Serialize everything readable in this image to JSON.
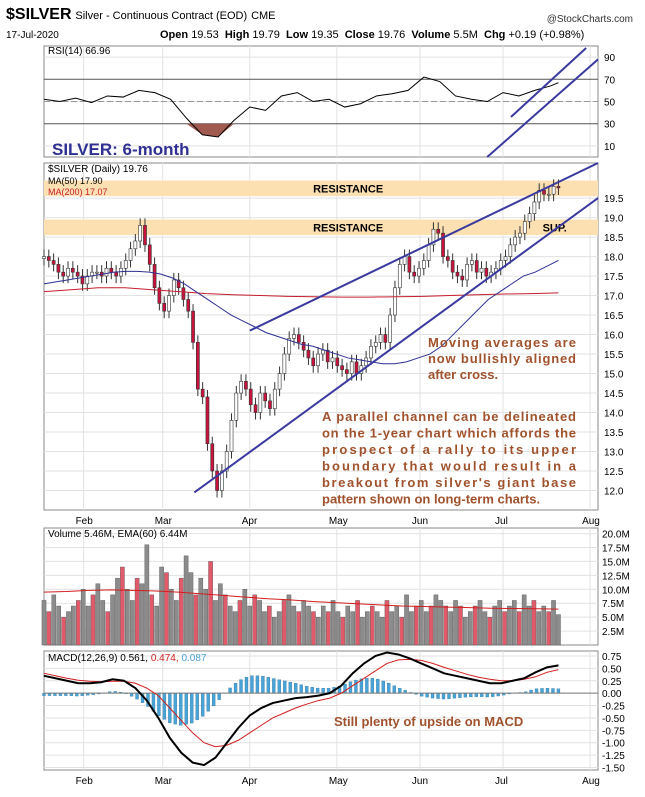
{
  "header": {
    "symbol": "$SILVER",
    "name": "Silver - Continuous Contract (EOD)",
    "exchange": "CME",
    "date": "17-Jul-2020",
    "open_label": "Open",
    "open": "19.53",
    "high_label": "High",
    "high": "19.79",
    "low_label": "Low",
    "low": "19.35",
    "close_label": "Close",
    "close": "19.76",
    "volume_label": "Volume",
    "volume": "5.5M",
    "chg_label": "Chg",
    "chg": "+0.19 (+0.98%)",
    "brand": "@StockCharts.com"
  },
  "colors": {
    "up": "#8c8c8c",
    "down": "#c8143c",
    "ma50": "#2e3192",
    "ma200": "#c81e2d",
    "channel": "#3a3aa0",
    "band": "#fde0b2",
    "annotation": "#a0522d",
    "macd_line": "#000000",
    "signal_line": "#d21e1e",
    "histogram": "#4aa3d6",
    "title_blue": "#2e3192"
  },
  "chart_data": [
    {
      "type": "line",
      "panel": "rsi",
      "legend": "RSI(14) 66.96",
      "ylim": [
        0,
        100
      ],
      "ticks": [
        90,
        70,
        50,
        30,
        10
      ],
      "x": [
        0,
        4,
        8,
        12,
        16,
        20,
        24,
        28,
        32,
        36,
        40,
        44,
        48,
        52,
        56,
        60,
        64,
        68,
        72,
        76,
        80,
        84,
        88,
        92,
        96,
        100,
        104,
        108,
        112,
        116,
        120,
        124,
        128,
        130
      ],
      "values": [
        52,
        50,
        53,
        49,
        55,
        54,
        60,
        58,
        52,
        35,
        20,
        18,
        33,
        45,
        42,
        55,
        58,
        50,
        52,
        45,
        48,
        55,
        57,
        60,
        72,
        68,
        55,
        52,
        50,
        58,
        55,
        60,
        64,
        66.96
      ]
    },
    {
      "type": "candlestick",
      "panel": "price",
      "legend_series": "$SILVER (Daily) 19.76",
      "legend_ma50": "MA(50) 17.90",
      "legend_ma200": "MA(200) 17.07",
      "panel_title": "SILVER: 6-month",
      "ylim": [
        11.5,
        20.4
      ],
      "ticks": [
        19.5,
        19.0,
        18.5,
        18.0,
        17.5,
        17.0,
        16.5,
        16.0,
        15.5,
        15.0,
        14.5,
        14.0,
        13.5,
        13.0,
        12.5,
        12.0
      ],
      "x_ticks": [
        {
          "label": "Feb",
          "x": 10
        },
        {
          "label": "Mar",
          "x": 30
        },
        {
          "label": "Apr",
          "x": 52
        },
        {
          "label": "May",
          "x": 74
        },
        {
          "label": "Jun",
          "x": 95
        },
        {
          "label": "Jul",
          "x": 116
        },
        {
          "label": "Aug",
          "x": 138
        }
      ],
      "x_range": [
        0,
        140
      ],
      "close": [
        18.0,
        17.9,
        17.8,
        17.6,
        17.5,
        17.7,
        17.6,
        17.5,
        17.3,
        17.5,
        17.6,
        17.6,
        17.5,
        17.7,
        17.6,
        17.5,
        17.7,
        17.9,
        18.2,
        18.4,
        18.8,
        18.3,
        17.8,
        17.2,
        16.8,
        16.6,
        17.0,
        17.4,
        17.2,
        16.9,
        16.6,
        15.8,
        14.6,
        14.4,
        13.2,
        12.5,
        12.0,
        12.5,
        13.0,
        13.8,
        14.5,
        14.8,
        14.6,
        14.2,
        14.0,
        14.5,
        14.3,
        14.1,
        14.6,
        15.0,
        15.5,
        15.9,
        16.0,
        15.8,
        15.6,
        15.4,
        15.2,
        15.5,
        15.6,
        15.3,
        15.4,
        15.2,
        15.1,
        15.0,
        15.3,
        15.0,
        15.2,
        15.4,
        15.7,
        15.8,
        16.0,
        15.8,
        16.5,
        17.2,
        17.8,
        18.0,
        17.6,
        17.5,
        17.7,
        17.9,
        18.3,
        18.7,
        18.6,
        18.0,
        17.9,
        17.6,
        17.5,
        17.4,
        17.8,
        17.9,
        17.6,
        17.7,
        17.5,
        17.6,
        17.7,
        17.9,
        18.0,
        18.3,
        18.5,
        18.6,
        18.9,
        19.1,
        19.4,
        19.7,
        19.6,
        19.6,
        19.8,
        19.76
      ],
      "ma50": [
        17.3,
        17.35,
        17.4,
        17.45,
        17.5,
        17.55,
        17.6,
        17.62,
        17.62,
        17.6,
        17.55,
        17.45,
        17.3,
        17.1,
        16.9,
        16.7,
        16.5,
        16.35,
        16.2,
        16.05,
        15.95,
        15.85,
        15.75,
        15.7,
        15.6,
        15.5,
        15.4,
        15.35,
        15.3,
        15.25,
        15.25,
        15.3,
        15.4,
        15.5,
        15.7,
        16.0,
        16.3,
        16.6,
        16.9,
        17.1,
        17.3,
        17.5,
        17.6,
        17.75,
        17.9
      ],
      "ma50_start": 0,
      "ma200": [
        17.1,
        17.15,
        17.2,
        17.2,
        17.15,
        17.1,
        17.05,
        17.02,
        17.0,
        16.98,
        16.97,
        16.96,
        16.96,
        16.97,
        16.98,
        17.0,
        17.02,
        17.04,
        17.05,
        17.07
      ],
      "channel_upper": [
        [
          52,
          16.1
        ],
        [
          140,
          20.4
        ]
      ],
      "channel_lower": [
        [
          38,
          11.95
        ],
        [
          140,
          19.5
        ]
      ],
      "bands": [
        {
          "label": "RESISTANCE",
          "from": 19.55,
          "to": 19.95
        },
        {
          "label": "RESISTANCE",
          "from": 18.55,
          "to": 18.95,
          "right_label": "SUP."
        }
      ],
      "annotations": [
        "Moving averages are now bullishly aligned after cross.",
        "A parallel channel can be delineated on the 1-year chart which affords the prospect of a rally to its upper boundary that would result in a breakout from silver's giant base pattern shown on long-term charts."
      ]
    },
    {
      "type": "bar",
      "panel": "volume",
      "legend": "Volume 5.46M, EMA(60) 6.44M",
      "ylim": [
        0,
        21
      ],
      "ticks": [
        "20.0M",
        "17.5M",
        "15.0M",
        "12.5M",
        "10.0M",
        "7.5M",
        "5.0M",
        "2.5M"
      ],
      "tick_values": [
        20,
        17.5,
        15,
        12.5,
        10,
        7.5,
        5,
        2.5
      ],
      "values": [
        8,
        6,
        9,
        7,
        5,
        6,
        7,
        8,
        10,
        7,
        9,
        11,
        8,
        6,
        9,
        12,
        14,
        10,
        8,
        12,
        11,
        18,
        9,
        7,
        14,
        13,
        10,
        8,
        12,
        16,
        13,
        9,
        12,
        10,
        15,
        8,
        11,
        9,
        7,
        6,
        8,
        10,
        7,
        9,
        8,
        6,
        7,
        5,
        6,
        8,
        9,
        7,
        6,
        8,
        7,
        6,
        5,
        7,
        6,
        8,
        6,
        5,
        7,
        6,
        8,
        5,
        6,
        7,
        6,
        5,
        8,
        6,
        7,
        5,
        9,
        6,
        7,
        8,
        6,
        7,
        9,
        8,
        7,
        6,
        8,
        7,
        5,
        6,
        7,
        8,
        6,
        5,
        7,
        8,
        6,
        7,
        8,
        6,
        9,
        7,
        8,
        6,
        7,
        6,
        8,
        5.46
      ],
      "ema": [
        9.5,
        9.6,
        9.8,
        9.9,
        9.8,
        9.7,
        9.5,
        9.2,
        8.9,
        8.6,
        8.3,
        8.1,
        7.8,
        7.6,
        7.4,
        7.2,
        7.0,
        6.9,
        6.8,
        6.7,
        6.6,
        6.55,
        6.5,
        6.44
      ]
    },
    {
      "type": "line",
      "panel": "macd",
      "legend_label": "MACD(12,26,9)",
      "legend_macd": "0.561",
      "legend_signal": "0.474",
      "legend_hist": "0.087",
      "ylim": [
        -1.55,
        0.85
      ],
      "ticks": [
        0.75,
        0.5,
        0.25,
        0.0,
        -0.25,
        -0.5,
        -0.75,
        -1.0,
        -1.25,
        -1.5
      ],
      "macd": [
        0.35,
        0.3,
        0.25,
        0.2,
        0.2,
        0.22,
        0.28,
        0.25,
        0.1,
        -0.15,
        -0.5,
        -0.9,
        -1.2,
        -1.4,
        -1.45,
        -1.3,
        -1.0,
        -0.7,
        -0.45,
        -0.3,
        -0.2,
        -0.15,
        -0.1,
        -0.08,
        -0.05,
        0.0,
        0.15,
        0.4,
        0.6,
        0.75,
        0.82,
        0.78,
        0.7,
        0.6,
        0.5,
        0.4,
        0.35,
        0.3,
        0.25,
        0.2,
        0.2,
        0.25,
        0.3,
        0.42,
        0.52,
        0.561
      ],
      "signal": [
        0.4,
        0.35,
        0.3,
        0.26,
        0.24,
        0.23,
        0.24,
        0.24,
        0.2,
        0.1,
        -0.05,
        -0.3,
        -0.55,
        -0.8,
        -1.0,
        -1.08,
        -1.05,
        -0.95,
        -0.8,
        -0.65,
        -0.5,
        -0.4,
        -0.3,
        -0.22,
        -0.15,
        -0.1,
        0.0,
        0.15,
        0.3,
        0.45,
        0.6,
        0.67,
        0.68,
        0.66,
        0.6,
        0.52,
        0.45,
        0.38,
        0.32,
        0.28,
        0.25,
        0.25,
        0.28,
        0.33,
        0.42,
        0.474
      ],
      "annotation": "Still plenty of upside on MACD",
      "x_ticks": [
        {
          "label": "Feb",
          "x": 10
        },
        {
          "label": "Mar",
          "x": 30
        },
        {
          "label": "Apr",
          "x": 52
        },
        {
          "label": "May",
          "x": 74
        },
        {
          "label": "Jun",
          "x": 95
        },
        {
          "label": "Jul",
          "x": 116
        },
        {
          "label": "Aug",
          "x": 138
        }
      ]
    }
  ]
}
